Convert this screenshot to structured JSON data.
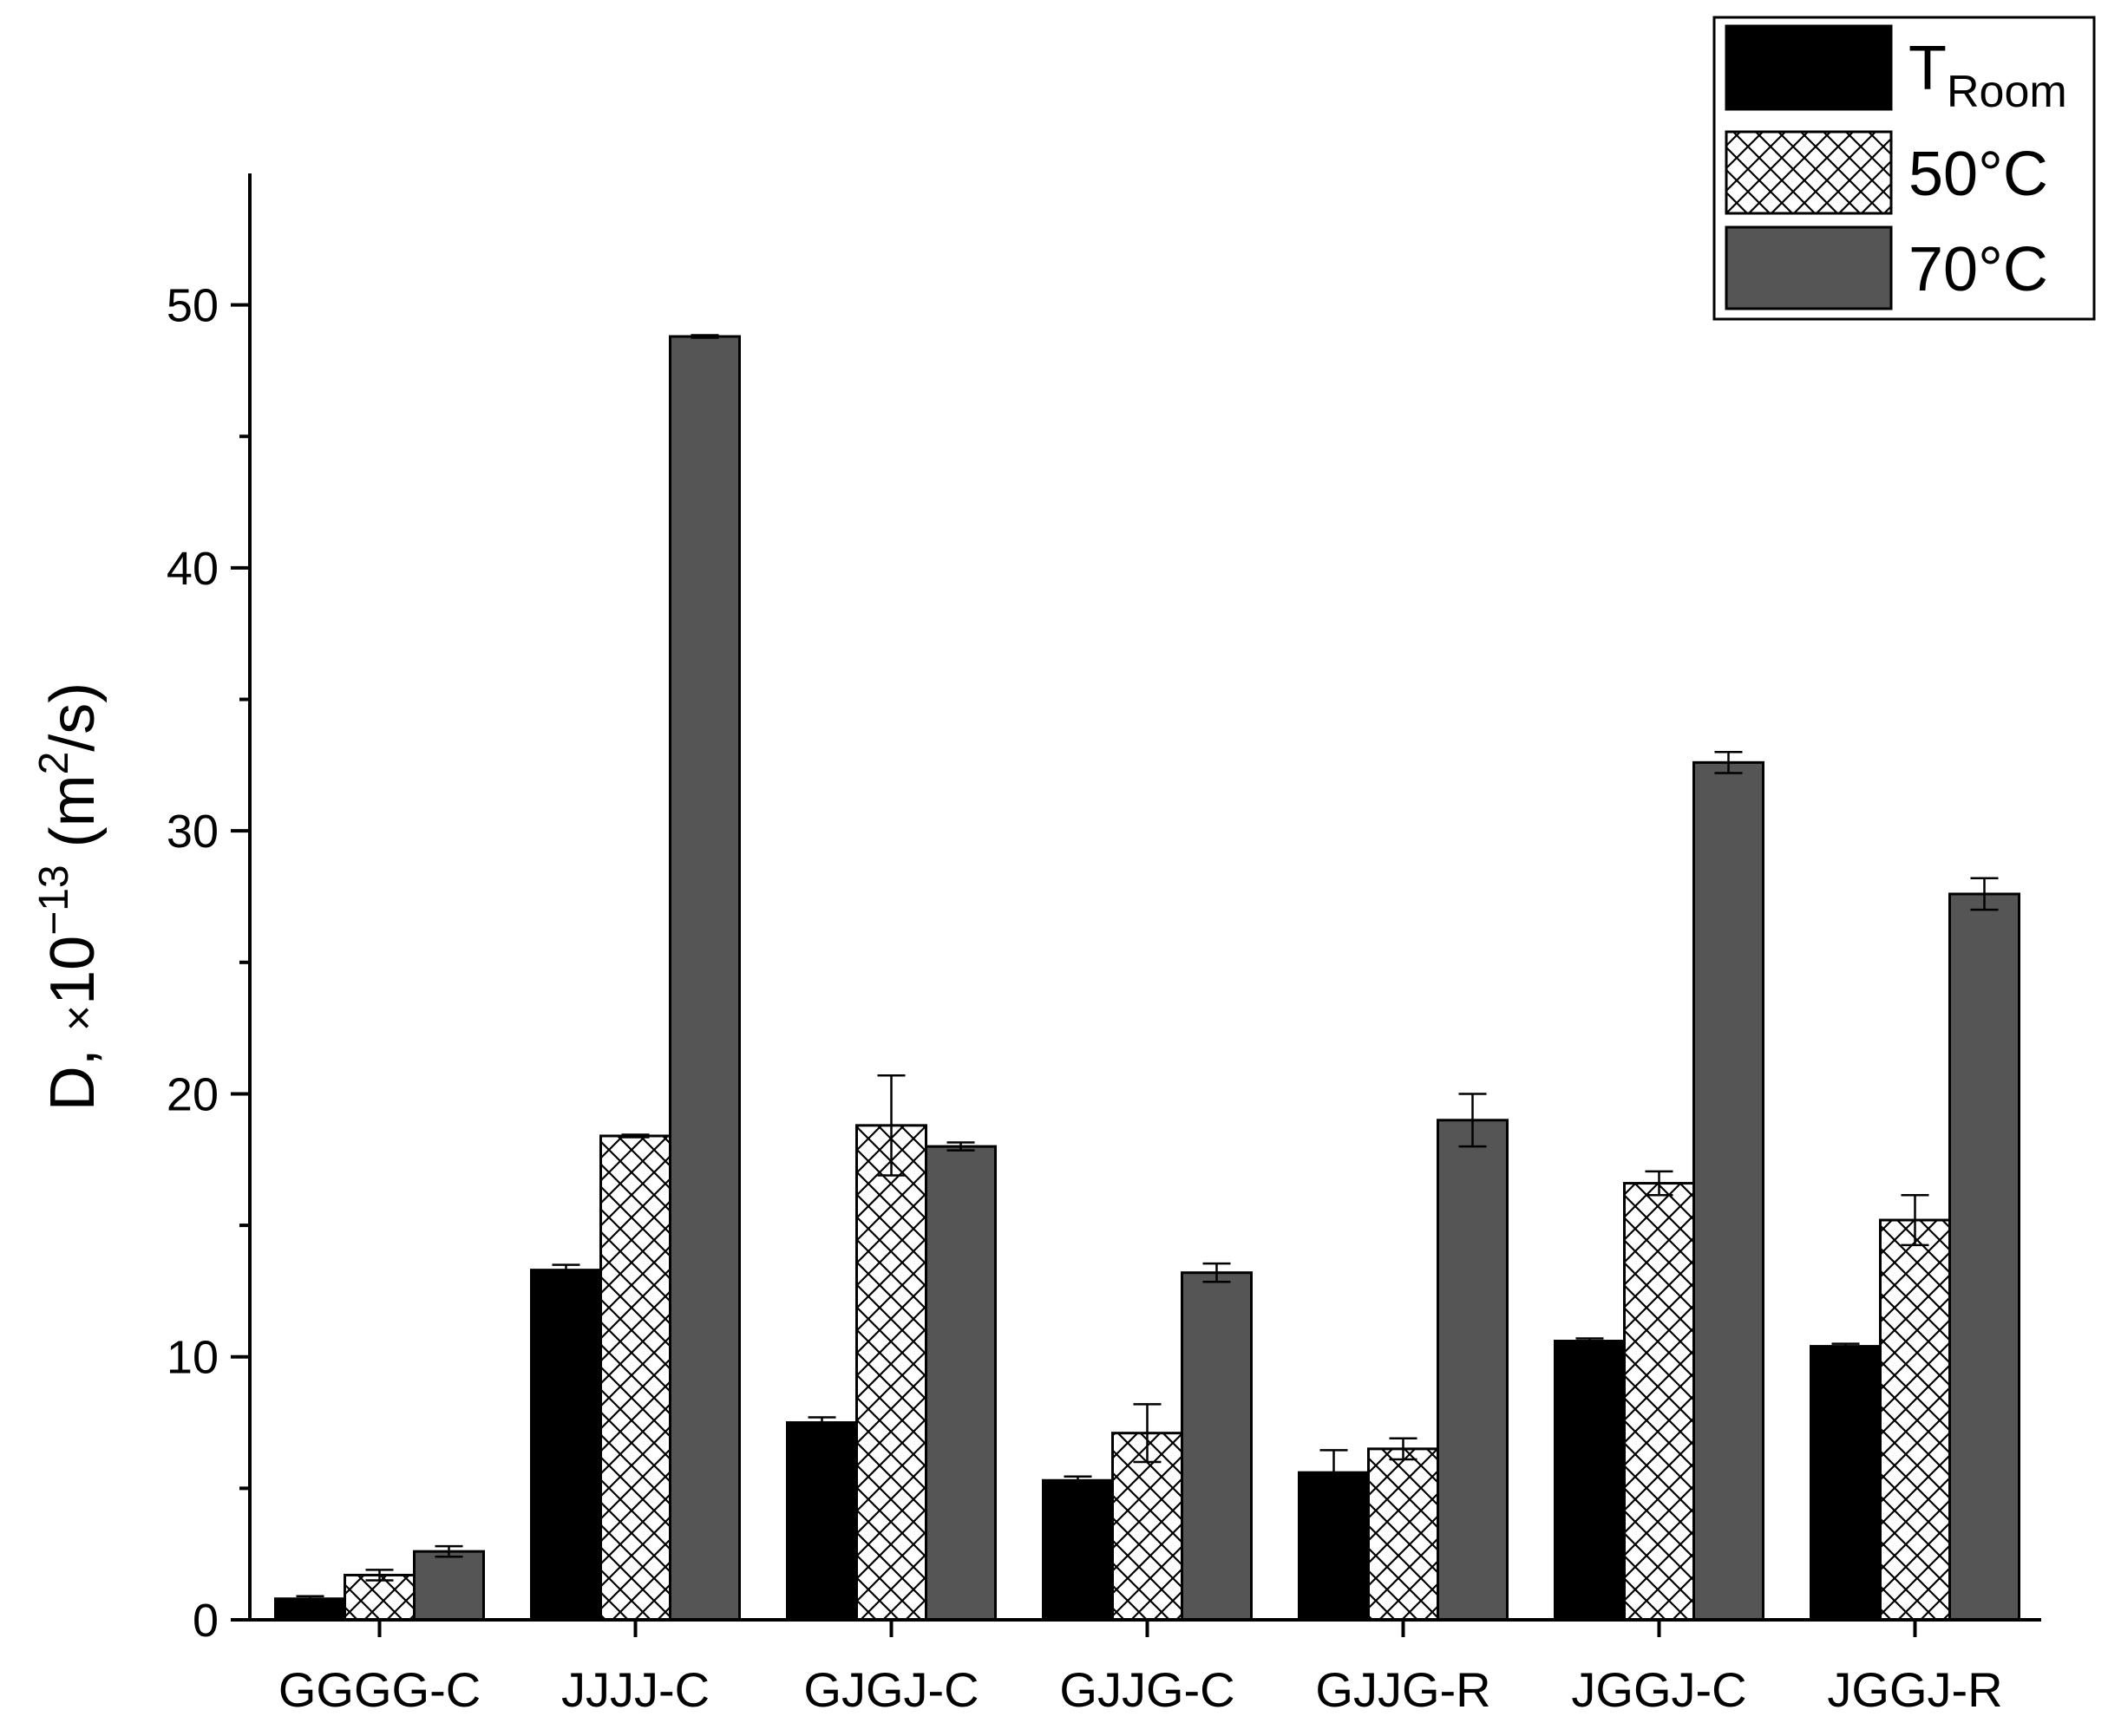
{
  "colors": {
    "troom": "#000000",
    "c50_fill": "#ffffff",
    "c50_hatch": "#000000",
    "c70": "#555555",
    "axis": "#000000"
  },
  "chart_data": {
    "type": "bar",
    "categories": [
      "GGGG-C",
      "JJJJ-C",
      "GJGJ-C",
      "GJJG-C",
      "GJJG-R",
      "JGGJ-C",
      "JGGJ-R"
    ],
    "series": [
      {
        "name": "T",
        "name_subscript": "Room",
        "pattern": "solid-black",
        "values": [
          0.8,
          13.3,
          7.5,
          5.3,
          5.6,
          10.6,
          10.4
        ],
        "errors": [
          0.1,
          0.2,
          0.2,
          0.15,
          0.85,
          0.1,
          0.1
        ]
      },
      {
        "name": "50°C",
        "pattern": "crosshatch",
        "values": [
          1.7,
          18.4,
          18.8,
          7.1,
          6.5,
          16.6,
          15.2
        ],
        "errors": [
          0.2,
          0.05,
          1.9,
          1.1,
          0.4,
          0.45,
          0.95
        ]
      },
      {
        "name": "70°C",
        "pattern": "solid-gray",
        "values": [
          2.6,
          48.8,
          18.0,
          13.2,
          19.0,
          32.6,
          27.6
        ],
        "errors": [
          0.2,
          0.05,
          0.15,
          0.35,
          1.0,
          0.4,
          0.6
        ]
      }
    ],
    "ylabel_main": "D, ",
    "ylabel_times": "×",
    "ylabel_base": "10",
    "ylabel_exp": "−13",
    "ylabel_unit_open": " (m",
    "ylabel_unit_exp": "2",
    "ylabel_unit_close": "/s)",
    "xlabel": "",
    "ylim": [
      0,
      55
    ],
    "yticks": [
      0,
      10,
      20,
      30,
      40,
      50
    ],
    "grid": false,
    "legend_position": "top-right"
  }
}
